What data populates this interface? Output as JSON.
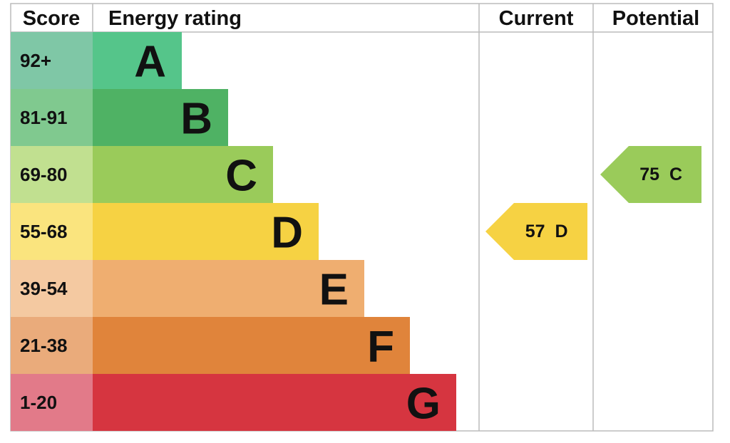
{
  "header": {
    "score": "Score",
    "rating": "Energy rating",
    "current": "Current",
    "potential": "Potential"
  },
  "bands": [
    {
      "score": "92+",
      "letter": "A",
      "color": "#55c58a",
      "score_color": "#7fc7a6"
    },
    {
      "score": "81-91",
      "letter": "B",
      "color": "#4fb264",
      "score_color": "#80c98f"
    },
    {
      "score": "69-80",
      "letter": "C",
      "color": "#9acb5a",
      "score_color": "#c1e090"
    },
    {
      "score": "55-68",
      "letter": "D",
      "color": "#f6d243",
      "score_color": "#fae47e"
    },
    {
      "score": "39-54",
      "letter": "E",
      "color": "#efae70",
      "score_color": "#f4c9a1"
    },
    {
      "score": "21-38",
      "letter": "F",
      "color": "#e0843b",
      "score_color": "#eaab7b"
    },
    {
      "score": "1-20",
      "letter": "G",
      "color": "#d63540",
      "score_color": "#e27a89"
    }
  ],
  "current": {
    "score": "57",
    "letter": "D"
  },
  "potential": {
    "score": "75",
    "letter": "C"
  }
}
